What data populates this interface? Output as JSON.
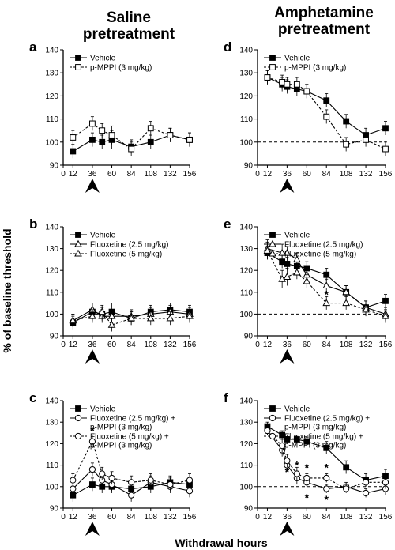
{
  "figure": {
    "col_titles": [
      [
        "Saline",
        "pretreatment"
      ],
      [
        "Amphetamine",
        "pretreatment"
      ]
    ],
    "ylabel": "% of baseline threshold",
    "xlabel": "Withdrawal hours"
  },
  "chart_data": [
    {
      "panel": "a",
      "type": "line",
      "x": [
        12,
        36,
        48,
        60,
        84,
        108,
        132,
        156
      ],
      "xticks": [
        0,
        12,
        36,
        60,
        84,
        108,
        132,
        156
      ],
      "ylim": [
        90,
        140
      ],
      "yticks": [
        90,
        100,
        110,
        120,
        130,
        140
      ],
      "baseline": null,
      "arrow_x": 36,
      "grid": false,
      "series": [
        {
          "name": "Vehicle",
          "marker": "filled-square",
          "dash": false,
          "values": [
            96,
            101,
            100,
            101,
            98,
            100,
            103,
            101
          ],
          "errors": [
            3,
            3,
            3,
            4,
            3,
            3,
            3,
            3
          ]
        },
        {
          "name": "p-MPPI (3 mg/kg)",
          "marker": "open-square",
          "dash": true,
          "values": [
            102,
            108,
            105,
            103,
            97,
            106,
            103,
            101
          ],
          "errors": [
            3,
            3,
            3,
            4,
            3,
            3,
            3,
            3
          ]
        }
      ],
      "stars": []
    },
    {
      "panel": "b",
      "type": "line",
      "x": [
        12,
        36,
        48,
        60,
        84,
        108,
        132,
        156
      ],
      "xticks": [
        0,
        12,
        36,
        60,
        84,
        108,
        132,
        156
      ],
      "ylim": [
        90,
        140
      ],
      "yticks": [
        90,
        100,
        110,
        120,
        130,
        140
      ],
      "baseline": null,
      "arrow_x": 36,
      "grid": false,
      "series": [
        {
          "name": "Vehicle",
          "marker": "filled-square",
          "dash": false,
          "values": [
            96,
            101,
            100,
            101,
            98,
            101,
            102,
            101
          ],
          "errors": [
            3,
            4,
            3,
            4,
            3,
            3,
            3,
            3
          ]
        },
        {
          "name": "Fluoxetine (2.5 mg/kg)",
          "marker": "open-triangle",
          "dash": false,
          "values": [
            97,
            102,
            99,
            99,
            99,
            100,
            101,
            100
          ],
          "errors": [
            3,
            3,
            3,
            3,
            3,
            3,
            3,
            3
          ]
        },
        {
          "name": "Fluoxetine (5 mg/kg)",
          "marker": "open-triangle",
          "dash": true,
          "values": [
            97,
            99,
            101,
            95,
            98,
            98,
            98,
            99
          ],
          "errors": [
            3,
            3,
            3,
            3,
            3,
            3,
            3,
            3
          ]
        }
      ],
      "stars": []
    },
    {
      "panel": "c",
      "type": "line",
      "x": [
        12,
        36,
        48,
        60,
        84,
        108,
        132,
        156
      ],
      "xticks": [
        0,
        12,
        36,
        60,
        84,
        108,
        132,
        156
      ],
      "ylim": [
        90,
        140
      ],
      "yticks": [
        90,
        100,
        110,
        120,
        130,
        140
      ],
      "baseline": null,
      "arrow_x": 36,
      "grid": false,
      "series": [
        {
          "name": "Vehicle",
          "marker": "filled-square",
          "dash": false,
          "values": [
            96,
            101,
            100,
            100,
            99,
            100,
            102,
            101
          ],
          "errors": [
            3,
            3,
            3,
            3,
            3,
            3,
            3,
            3
          ]
        },
        {
          "name": "Fluoxetine (2.5 mg/kg) + p-MPPI (3 mg/kg)",
          "legend_lines": [
            "Fluoxetine (2.5 mg/kg) +",
            "p-MPPI (3 mg/kg)"
          ],
          "marker": "open-circle",
          "dash": false,
          "values": [
            99,
            108,
            103,
            101,
            96,
            102,
            100,
            98
          ],
          "errors": [
            3,
            3,
            3,
            3,
            3,
            3,
            3,
            3
          ]
        },
        {
          "name": "Fluoxetine (5 mg/kg) + p-MPPI (3 mg/kg)",
          "legend_lines": [
            "Fluoxetine (5 mg/kg) +",
            "p-MPPI (3 mg/kg)"
          ],
          "marker": "open-circle",
          "dash": true,
          "values": [
            103,
            121,
            106,
            104,
            102,
            103,
            101,
            103
          ],
          "errors": [
            3,
            3,
            3,
            3,
            3,
            3,
            3,
            3
          ]
        }
      ],
      "stars": [
        {
          "x": 36,
          "y": 126,
          "text": "*"
        }
      ]
    },
    {
      "panel": "d",
      "type": "line",
      "x": [
        12,
        30,
        36,
        48,
        60,
        84,
        108,
        132,
        156
      ],
      "xticks": [
        0,
        12,
        36,
        60,
        84,
        108,
        132,
        156
      ],
      "ylim": [
        90,
        140
      ],
      "yticks": [
        90,
        100,
        110,
        120,
        130,
        140
      ],
      "baseline": 100,
      "arrow_x": 36,
      "grid": false,
      "series": [
        {
          "name": "Vehicle",
          "marker": "filled-square",
          "dash": false,
          "values": [
            128,
            125,
            124,
            123,
            122,
            118,
            109,
            103,
            106
          ],
          "errors": [
            3,
            3,
            3,
            3,
            3,
            3,
            3,
            3,
            3
          ]
        },
        {
          "name": "p-MPPI (3 mg/kg)",
          "marker": "open-square",
          "dash": true,
          "values": [
            128,
            126,
            125,
            125,
            122,
            111,
            99,
            101,
            97
          ],
          "errors": [
            3,
            3,
            3,
            3,
            3,
            3,
            3,
            3,
            3
          ]
        }
      ],
      "stars": []
    },
    {
      "panel": "e",
      "type": "line",
      "x": [
        12,
        30,
        36,
        48,
        60,
        84,
        108,
        132,
        156
      ],
      "xticks": [
        0,
        12,
        36,
        60,
        84,
        108,
        132,
        156
      ],
      "ylim": [
        90,
        140
      ],
      "yticks": [
        90,
        100,
        110,
        120,
        130,
        140
      ],
      "baseline": 100,
      "arrow_x": 36,
      "grid": false,
      "series": [
        {
          "name": "Vehicle",
          "marker": "filled-square",
          "dash": false,
          "values": [
            128,
            124,
            123,
            122,
            121,
            118,
            110,
            103,
            106
          ],
          "errors": [
            3,
            3,
            3,
            3,
            3,
            3,
            3,
            3,
            3
          ]
        },
        {
          "name": "Fluoxetine (2.5 mg/kg)",
          "marker": "open-triangle",
          "dash": false,
          "values": [
            130,
            128,
            128,
            125,
            118,
            113,
            110,
            103,
            100
          ],
          "errors": [
            4,
            4,
            3,
            3,
            3,
            3,
            3,
            3,
            3
          ]
        },
        {
          "name": "Fluoxetine (5 mg/kg)",
          "marker": "open-triangle",
          "dash": true,
          "values": [
            129,
            116,
            117,
            119,
            115,
            105,
            105,
            102,
            99
          ],
          "errors": [
            4,
            4,
            4,
            3,
            3,
            3,
            3,
            3,
            3
          ]
        }
      ],
      "stars": [
        {
          "x": 84,
          "y": 109,
          "text": "*"
        }
      ]
    },
    {
      "panel": "f",
      "type": "line",
      "x": [
        12,
        30,
        36,
        48,
        60,
        84,
        108,
        132,
        156
      ],
      "xticks": [
        0,
        12,
        36,
        60,
        84,
        108,
        132,
        156
      ],
      "ylim": [
        90,
        140
      ],
      "yticks": [
        90,
        100,
        110,
        120,
        130,
        140
      ],
      "baseline": 100,
      "arrow_x": 36,
      "grid": false,
      "series": [
        {
          "name": "Vehicle",
          "marker": "filled-square",
          "dash": false,
          "values": [
            128,
            124,
            122,
            122,
            121,
            118,
            109,
            103,
            105
          ],
          "errors": [
            2,
            2,
            2,
            2,
            2,
            3,
            3,
            3,
            3
          ]
        },
        {
          "name": "Fluoxetine (2.5 mg/kg) + p-MPPI (3 mg/kg)",
          "legend_lines": [
            "Fluoxetine (2.5 mg/kg) +",
            "p-MPPI (3 mg/kg)"
          ],
          "marker": "open-circle",
          "dash": false,
          "values": [
            126,
            117,
            110,
            104,
            102,
            99,
            100,
            97,
            99
          ],
          "errors": [
            2,
            3,
            3,
            3,
            2,
            2,
            2,
            2,
            3
          ]
        },
        {
          "name": "Fluoxetine (5 mg/kg) + p-MPPI (3 mg/kg)",
          "legend_lines": [
            "Fluoxetine (5 mg/kg) +",
            "p-MPPI (3 mg/kg)"
          ],
          "marker": "open-circle",
          "dash": true,
          "values": [
            126,
            119,
            112,
            106,
            104,
            104,
            99,
            102,
            102
          ],
          "errors": [
            2,
            3,
            3,
            3,
            2,
            2,
            2,
            2,
            3
          ]
        }
      ],
      "stars": [
        {
          "x": 36,
          "y": 107,
          "text": "*"
        },
        {
          "x": 48,
          "y": 110,
          "text": "*"
        },
        {
          "x": 60,
          "y": 109,
          "text": "*"
        },
        {
          "x": 84,
          "y": 109,
          "text": "*"
        },
        {
          "x": 60,
          "y": 95,
          "text": "*"
        },
        {
          "x": 84,
          "y": 94,
          "text": "*"
        }
      ]
    }
  ]
}
